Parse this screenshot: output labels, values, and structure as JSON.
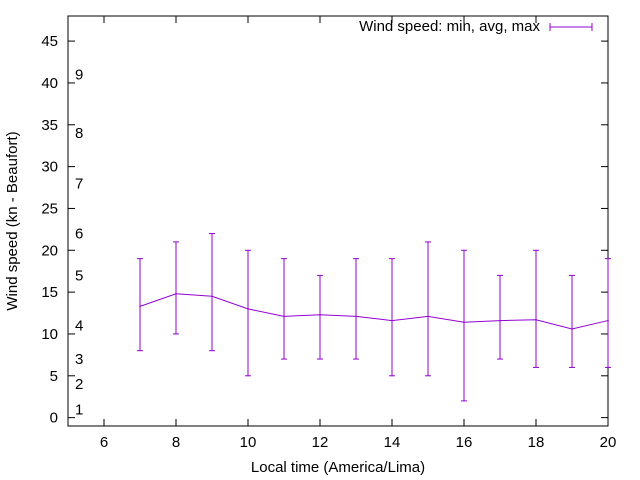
{
  "chart_data": {
    "type": "line",
    "title": "",
    "xlabel": "Local time (America/Lima)",
    "ylabel": "Wind speed (kn - Beaufort)",
    "xlim": [
      5,
      20
    ],
    "ylim": [
      -1,
      48
    ],
    "x_ticks": [
      6,
      8,
      10,
      12,
      14,
      16,
      18,
      20
    ],
    "y_ticks": [
      0,
      5,
      10,
      15,
      20,
      25,
      30,
      35,
      40,
      45
    ],
    "beaufort_labels": [
      {
        "label": "1",
        "at_kn": 1
      },
      {
        "label": "2",
        "at_kn": 4
      },
      {
        "label": "3",
        "at_kn": 7
      },
      {
        "label": "4",
        "at_kn": 11
      },
      {
        "label": "5",
        "at_kn": 17
      },
      {
        "label": "6",
        "at_kn": 22
      },
      {
        "label": "7",
        "at_kn": 28
      },
      {
        "label": "8",
        "at_kn": 34
      },
      {
        "label": "9",
        "at_kn": 41
      }
    ],
    "grid": false,
    "legend_position": "top-right",
    "series": [
      {
        "name": "Wind speed: min, avg, max",
        "color": "#9400d3",
        "x": [
          7,
          8,
          9,
          10,
          11,
          12,
          13,
          14,
          15,
          16,
          17,
          18,
          19,
          20
        ],
        "avg": [
          13.3,
          14.8,
          14.5,
          13.0,
          12.1,
          12.3,
          12.1,
          11.6,
          12.1,
          11.4,
          11.6,
          11.7,
          10.6,
          11.6
        ],
        "min": [
          8,
          10,
          8,
          5,
          7,
          7,
          7,
          5,
          5,
          2,
          7,
          6,
          6,
          6
        ],
        "max": [
          19,
          21,
          22,
          20,
          19,
          17,
          19,
          19,
          21,
          20,
          17,
          20,
          17,
          19
        ]
      }
    ]
  }
}
